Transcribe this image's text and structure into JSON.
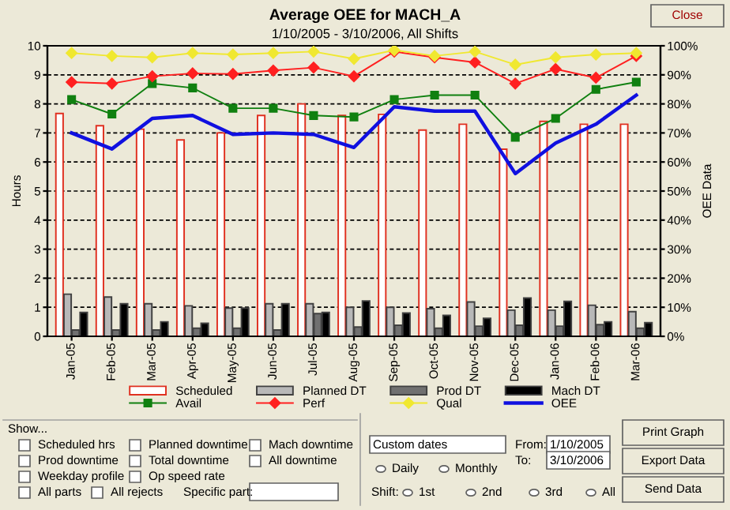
{
  "chart_data": {
    "type": "bar",
    "title": "Average OEE for MACH_A",
    "subtitle": "1/10/2005 - 3/10/2006, All Shifts",
    "ylabel": "Hours",
    "y2label": "OEE Data",
    "categories": [
      "Jan-05",
      "Feb-05",
      "Mar-05",
      "Apr-05",
      "May-05",
      "Jun-05",
      "Jul-05",
      "Aug-05",
      "Sep-05",
      "Oct-05",
      "Nov-05",
      "Dec-05",
      "Jan-06",
      "Feb-06",
      "Mar-06"
    ],
    "series": [
      {
        "name": "Scheduled",
        "color": "#e03020",
        "values": [
          7.67,
          7.25,
          7.13,
          6.76,
          7.0,
          7.6,
          8.0,
          7.6,
          7.64,
          7.1,
          7.3,
          6.44,
          7.4,
          7.3,
          7.3
        ]
      },
      {
        "name": "Planned DT",
        "color": "#b8b8b8",
        "values": [
          1.45,
          1.35,
          1.12,
          1.05,
          0.97,
          1.12,
          1.12,
          1.0,
          1.0,
          0.95,
          1.18,
          0.9,
          0.9,
          1.07,
          0.85
        ]
      },
      {
        "name": "Prod DT",
        "color": "#707070",
        "values": [
          0.22,
          0.22,
          0.22,
          0.28,
          0.28,
          0.22,
          0.78,
          0.32,
          0.38,
          0.28,
          0.35,
          0.38,
          0.35,
          0.4,
          0.28
        ]
      },
      {
        "name": "Mach DT",
        "color": "#000000",
        "values": [
          0.82,
          1.12,
          0.5,
          0.45,
          0.97,
          1.12,
          0.82,
          1.22,
          0.8,
          0.72,
          0.62,
          1.32,
          1.2,
          0.5,
          0.47
        ]
      },
      {
        "name": "Avail",
        "type": "line",
        "axis": "y2",
        "color": "#108010",
        "marker": "square",
        "values": [
          81.5,
          76.5,
          87,
          85.5,
          78.5,
          78.5,
          76,
          75.5,
          81.5,
          83,
          83,
          68.5,
          75,
          85,
          87.5
        ]
      },
      {
        "name": "Perf",
        "type": "line",
        "axis": "y2",
        "color": "#ff2020",
        "marker": "diamond",
        "values": [
          87.5,
          87,
          89.5,
          90.5,
          90.3,
          91.5,
          92.5,
          89.5,
          98,
          96,
          94.3,
          87,
          92,
          89,
          96.5
        ]
      },
      {
        "name": "Qual",
        "type": "line",
        "axis": "y2",
        "color": "#f0e830",
        "marker": "diamond",
        "values": [
          97.5,
          96.5,
          96,
          97.5,
          97,
          97.5,
          98,
          95.5,
          98.5,
          96.5,
          98,
          93.5,
          96,
          97,
          97.5
        ]
      },
      {
        "name": "OEE",
        "type": "line",
        "axis": "y2",
        "color": "#1010e0",
        "marker": "none",
        "values": [
          70,
          64.5,
          75,
          76,
          69.5,
          70,
          69.5,
          65,
          79,
          77.5,
          77.5,
          56,
          66.5,
          73,
          83
        ]
      }
    ],
    "ylim": [
      0,
      10
    ],
    "yticks": [
      0,
      1,
      2,
      3,
      4,
      5,
      6,
      7,
      8,
      9,
      10
    ],
    "y2lim": [
      0,
      100
    ],
    "y2ticks": [
      {
        "value": 0,
        "label": "0%"
      },
      {
        "value": 10,
        "label": "10%"
      },
      {
        "value": 20,
        "label": "20%"
      },
      {
        "value": 30,
        "label": "30%"
      },
      {
        "value": 40,
        "label": "40%"
      },
      {
        "value": 50,
        "label": "50%"
      },
      {
        "value": 60,
        "label": "60%"
      },
      {
        "value": 70,
        "label": "70%"
      },
      {
        "value": 80,
        "label": "80%"
      },
      {
        "value": 90,
        "label": "90%"
      },
      {
        "value": 100,
        "label": "100%"
      }
    ],
    "grid": "y",
    "legend": "bottom",
    "annotations": [
      "Close",
      "Show...",
      "Scheduled hrs",
      "Prod downtime",
      "Weekday profile",
      "All parts",
      "All rejects",
      "Planned downtime",
      "Total downtime",
      "Op speed rate",
      "Mach downtime",
      "All downtime",
      "Specific part:",
      "Custom dates",
      "From:",
      "1/10/2005",
      "To:",
      "3/10/2006",
      "Daily",
      "Monthly",
      "Shift:",
      "1st",
      "2nd",
      "3rd",
      "All",
      "Print Graph",
      "Export Data",
      "Send Data"
    ]
  }
}
